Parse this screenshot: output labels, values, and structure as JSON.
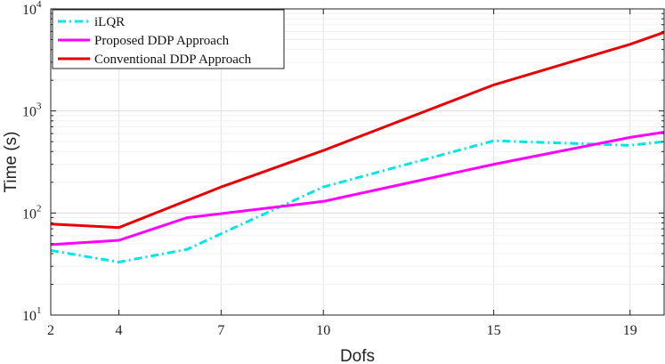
{
  "chart_data": {
    "type": "line",
    "title": "",
    "xlabel": "Dofs",
    "ylabel": "Time (s)",
    "xscale": "linear",
    "yscale": "log",
    "xlim": [
      2,
      20
    ],
    "ylim": [
      10,
      10000
    ],
    "xticks": [
      2,
      4,
      7,
      10,
      15,
      19
    ],
    "xtick_labels": [
      "2",
      "4",
      "7",
      "10",
      "15",
      "19"
    ],
    "yticks": [
      10,
      100,
      1000,
      10000
    ],
    "ytick_labels": [
      {
        "base": "10",
        "exp": "1"
      },
      {
        "base": "10",
        "exp": "2"
      },
      {
        "base": "10",
        "exp": "3"
      },
      {
        "base": "10",
        "exp": "4"
      }
    ],
    "grid": true,
    "legend_position": "top-left",
    "series": [
      {
        "name": "iLQR",
        "color": "#00E5E5",
        "dash": "dash-dot",
        "x": [
          2,
          4,
          6,
          10,
          15,
          19,
          20
        ],
        "y": [
          43,
          33,
          44,
          180,
          510,
          460,
          500
        ]
      },
      {
        "name": "Proposed DDP Approach",
        "color": "#FF00FF",
        "dash": "solid",
        "x": [
          2,
          4,
          6,
          10,
          15,
          19,
          20
        ],
        "y": [
          49,
          54,
          90,
          130,
          300,
          550,
          620
        ]
      },
      {
        "name": "Conventional DDP Approach",
        "color": "#E60000",
        "dash": "solid",
        "x": [
          2,
          4,
          7,
          10,
          15,
          19,
          20
        ],
        "y": [
          78,
          72,
          180,
          410,
          1800,
          4500,
          5900
        ]
      }
    ]
  }
}
